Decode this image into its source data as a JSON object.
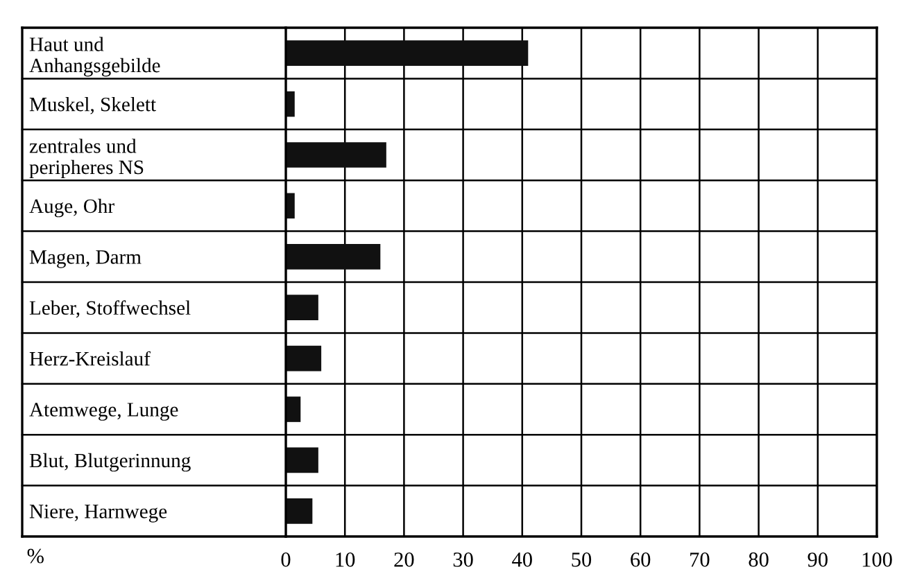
{
  "chart_data": {
    "type": "bar",
    "orientation": "horizontal",
    "xlabel": "%",
    "categories": [
      "Haut und\nAnhangsgebilde",
      "Muskel, Skelett",
      "zentrales und\nperipheres NS",
      "Auge, Ohr",
      "Magen, Darm",
      "Leber, Stoffwechsel",
      "Herz-Kreislauf",
      "Atemwege, Lunge",
      "Blut, Blutgerinnung",
      "Niere, Harnwege"
    ],
    "values": [
      41,
      1.5,
      17,
      1.5,
      16,
      5.5,
      6,
      2.5,
      5.5,
      4.5
    ],
    "color": "#111111",
    "xlim": [
      0,
      100
    ],
    "xticks": [
      0,
      10,
      20,
      30,
      40,
      50,
      60,
      70,
      80,
      90,
      100
    ],
    "grid": true
  }
}
